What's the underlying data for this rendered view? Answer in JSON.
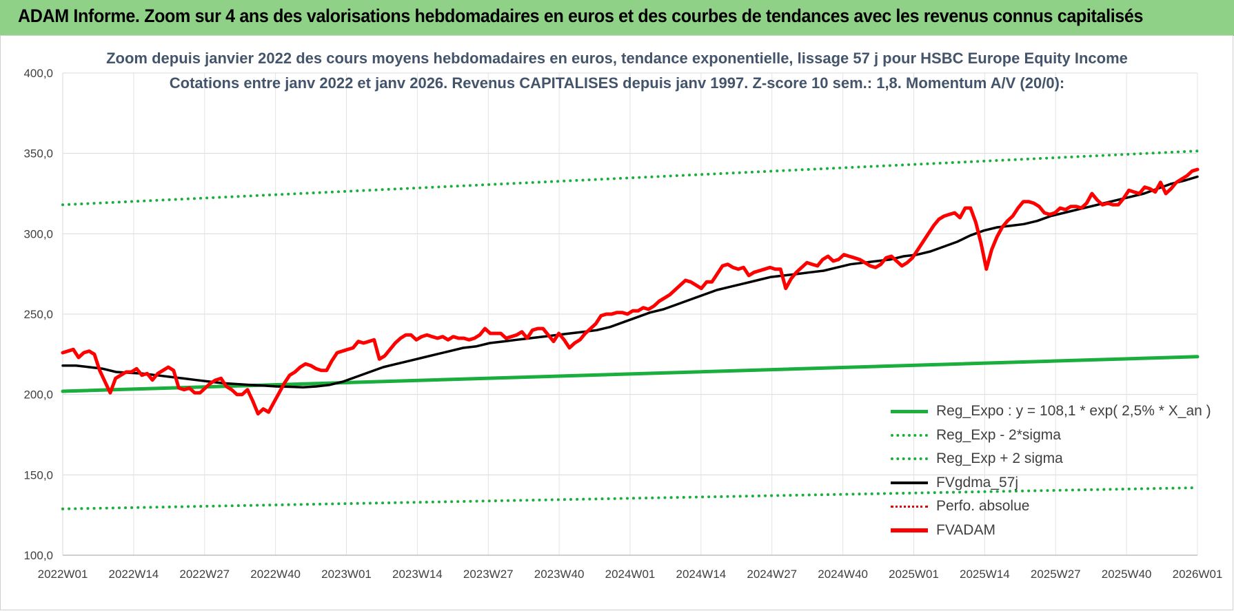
{
  "banner": {
    "title": "ADAM Informe. Zoom sur 4 ans des valorisations hebdomadaires en euros et des courbes de tendances avec les revenus connus capitalisés"
  },
  "chart_data": {
    "type": "line",
    "title": "Zoom depuis janvier 2022 des cours moyens hebdomadaires en euros, tendance exponentielle, lissage 57 j pour HSBC Europe Equity Income",
    "subtitle": "Cotations entre janv 2022 et janv 2026. Revenus CAPITALISES depuis janv 1997. Z-score 10 sem.: 1,8. Momentum A/V (20/0):",
    "xlabel": "",
    "ylabel": "",
    "ylim": [
      100,
      400
    ],
    "yticks": [
      "100,0",
      "150,0",
      "200,0",
      "250,0",
      "300,0",
      "350,0",
      "400,0"
    ],
    "xticks": [
      "2022W01",
      "2022W14",
      "2022W27",
      "2022W40",
      "2023W01",
      "2023W14",
      "2023W27",
      "2023W40",
      "2024W01",
      "2024W14",
      "2024W27",
      "2024W40",
      "2025W01",
      "2025W14",
      "2025W27",
      "2025W40",
      "2026W01"
    ],
    "grid": "vertical and horizontal",
    "legend_position": "bottom-right",
    "series": [
      {
        "name": "Reg_Expo : y = 108,1 * exp( 2,5% *  X_an )",
        "style": "solid",
        "color": "#1aae3c",
        "width": 5,
        "values": [
          202,
          223.5
        ]
      },
      {
        "name": "Reg_Exp - 2*sigma",
        "style": "dotted",
        "color": "#1aae3c",
        "width": 4,
        "values": [
          128.8,
          142
        ]
      },
      {
        "name": "Reg_Exp + 2 sigma",
        "style": "dotted",
        "color": "#1aae3c",
        "width": 4,
        "values": [
          318,
          351.5
        ]
      },
      {
        "name": "FVgdma_57j",
        "style": "solid",
        "color": "#000000",
        "width": 3.5,
        "values": [
          218,
          218,
          217,
          216,
          214,
          213.5,
          213,
          212,
          211,
          210,
          209,
          208,
          207,
          206.5,
          206,
          205.5,
          205,
          204.8,
          204.5,
          205,
          206,
          208,
          211,
          214,
          217,
          219,
          221,
          223,
          225,
          227,
          229,
          230,
          232,
          233,
          234,
          235,
          236,
          237,
          238,
          239,
          240,
          242,
          245,
          248,
          251,
          253,
          256,
          259,
          262,
          265,
          267,
          269,
          271,
          273,
          274,
          275,
          276,
          277,
          279,
          281,
          282,
          283,
          284,
          286,
          287,
          289,
          292,
          295,
          299,
          302,
          304,
          305,
          306,
          308,
          311,
          313,
          315,
          317,
          319,
          321,
          323,
          325,
          328,
          331,
          333,
          335.5
        ]
      },
      {
        "name": "Perfo. absolue",
        "style": "dotted",
        "color": "#e00000",
        "width": 3,
        "values": []
      },
      {
        "name": "FVADAM",
        "style": "solid",
        "color": "#ff0000",
        "width": 5,
        "values": [
          226,
          227,
          228,
          223,
          226,
          227,
          225,
          215,
          208,
          201,
          210,
          212,
          214,
          214,
          216,
          212,
          213,
          209,
          213,
          215,
          217,
          215,
          204,
          203,
          204,
          201,
          201,
          204,
          207,
          209,
          210,
          205,
          203,
          200,
          200,
          203,
          196,
          188,
          191,
          189,
          195,
          201,
          207,
          212,
          214,
          217,
          219,
          218,
          216,
          215,
          215,
          221,
          226,
          227,
          228,
          229,
          233,
          232,
          233,
          234,
          222,
          224,
          228,
          232,
          235,
          237,
          237,
          234,
          236,
          237,
          236,
          235,
          236,
          234,
          236,
          235,
          235,
          234,
          235,
          237,
          241,
          238,
          238,
          238,
          235,
          236,
          237,
          239,
          235,
          240,
          241,
          241,
          237,
          233,
          238,
          234,
          229,
          232,
          234,
          238,
          241,
          244,
          249,
          250,
          250,
          251,
          251,
          250,
          252,
          252,
          254,
          253,
          255,
          258,
          260,
          262,
          265,
          268,
          271,
          270,
          268,
          266,
          270,
          270,
          275,
          280,
          281,
          279,
          278,
          279,
          274,
          276,
          277,
          278,
          279,
          278,
          278,
          266,
          272,
          276,
          279,
          282,
          281,
          280,
          284,
          286,
          283,
          284,
          287,
          286,
          285,
          284,
          282,
          280,
          279,
          281,
          285,
          286,
          283,
          280,
          282,
          285,
          290,
          295,
          300,
          305,
          309,
          311,
          312,
          313,
          310,
          316,
          316,
          307,
          294,
          278,
          290,
          298,
          304,
          308,
          311,
          316,
          320,
          320,
          319,
          317,
          313,
          312,
          313,
          316,
          315,
          317,
          317,
          316,
          319,
          325,
          321,
          318,
          319,
          318,
          318,
          322,
          327,
          326,
          325,
          329,
          328,
          326,
          332,
          325,
          328,
          332,
          334,
          336,
          339,
          340
        ]
      }
    ]
  }
}
